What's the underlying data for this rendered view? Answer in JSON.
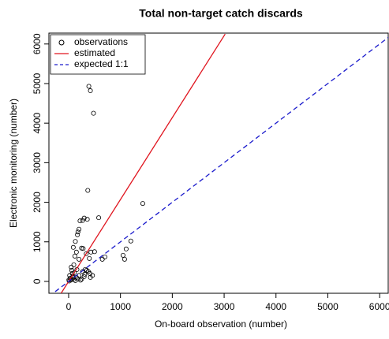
{
  "chart_data": {
    "type": "scatter",
    "title": "Total non-target catch discards",
    "x_label": "On-board observation (number)",
    "y_label": "Electronic monitoring (number)",
    "xlim": [
      -380,
      6165
    ],
    "ylim": [
      -300,
      6275
    ],
    "xticks": [
      0,
      1000,
      2000,
      3000,
      4000,
      5000,
      6000
    ],
    "yticks": [
      0,
      1000,
      2000,
      3000,
      4000,
      5000,
      6000
    ],
    "legend": "top-left",
    "series": [
      {
        "name": "observations",
        "style": "points",
        "color": "#000000",
        "x": [
          390,
          420,
          480,
          370,
          1430,
          580,
          300,
          360,
          270,
          220,
          200,
          180,
          170,
          130,
          90,
          250,
          280,
          150,
          430,
          500,
          340,
          650,
          700,
          1050,
          1080,
          1200,
          1110,
          400,
          200,
          120,
          100,
          50,
          60,
          160,
          320,
          380,
          410,
          460,
          70,
          80,
          30,
          40,
          100,
          150,
          200,
          250,
          300,
          350,
          420,
          10,
          20,
          110,
          180,
          230,
          270,
          310,
          130,
          60,
          90,
          5
        ],
        "values": [
          4930,
          4820,
          4250,
          2300,
          1970,
          1610,
          1600,
          1570,
          1540,
          1530,
          1320,
          1250,
          1180,
          1010,
          860,
          840,
          830,
          740,
          740,
          750,
          700,
          560,
          620,
          660,
          560,
          1020,
          820,
          580,
          560,
          640,
          420,
          360,
          280,
          300,
          300,
          250,
          200,
          150,
          200,
          120,
          80,
          30,
          50,
          100,
          150,
          60,
          120,
          280,
          100,
          10,
          150,
          220,
          60,
          30,
          250,
          180,
          20,
          50,
          90,
          40
        ]
      },
      {
        "name": "estimated",
        "style": "solid",
        "color": "#e0141e",
        "x": [
          -380,
          3020
        ],
        "values": [
          -787,
          6251
        ]
      },
      {
        "name": "expected 1:1",
        "style": "dashed",
        "color": "#1a1acc",
        "x": [
          -380,
          6165
        ],
        "values": [
          -380,
          6165
        ]
      }
    ]
  }
}
